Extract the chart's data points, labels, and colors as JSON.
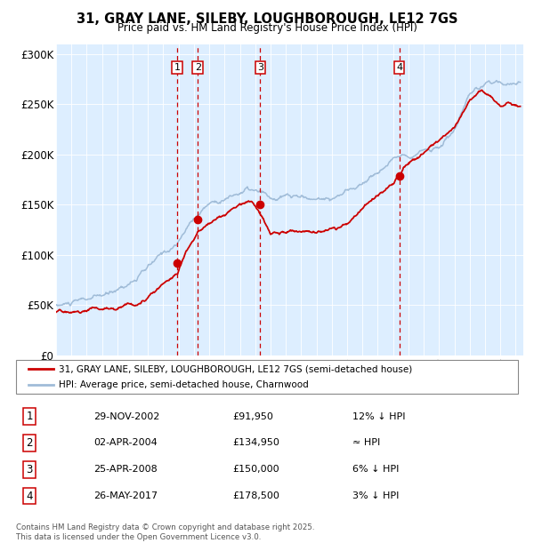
{
  "title": "31, GRAY LANE, SILEBY, LOUGHBOROUGH, LE12 7GS",
  "subtitle": "Price paid vs. HM Land Registry's House Price Index (HPI)",
  "xlim": [
    1995.0,
    2025.5
  ],
  "ylim": [
    0,
    310000
  ],
  "yticks": [
    0,
    50000,
    100000,
    150000,
    200000,
    250000,
    300000
  ],
  "ytick_labels": [
    "£0",
    "£50K",
    "£100K",
    "£150K",
    "£200K",
    "£250K",
    "£300K"
  ],
  "hpi_color": "#a0bcd8",
  "price_color": "#cc0000",
  "bg_color": "#ddeeff",
  "sale_points": [
    {
      "year": 2002.91,
      "price": 91950,
      "label": "1"
    },
    {
      "year": 2004.25,
      "price": 134950,
      "label": "2"
    },
    {
      "year": 2008.32,
      "price": 150000,
      "label": "3"
    },
    {
      "year": 2017.4,
      "price": 178500,
      "label": "4"
    }
  ],
  "vline_color": "#cc0000",
  "legend_entries": [
    "31, GRAY LANE, SILEBY, LOUGHBOROUGH, LE12 7GS (semi-detached house)",
    "HPI: Average price, semi-detached house, Charnwood"
  ],
  "table_data": [
    [
      "1",
      "29-NOV-2002",
      "£91,950",
      "12% ↓ HPI"
    ],
    [
      "2",
      "02-APR-2004",
      "£134,950",
      "≈ HPI"
    ],
    [
      "3",
      "25-APR-2008",
      "£150,000",
      "6% ↓ HPI"
    ],
    [
      "4",
      "26-MAY-2017",
      "£178,500",
      "3% ↓ HPI"
    ]
  ],
  "footer": "Contains HM Land Registry data © Crown copyright and database right 2025.\nThis data is licensed under the Open Government Licence v3.0."
}
